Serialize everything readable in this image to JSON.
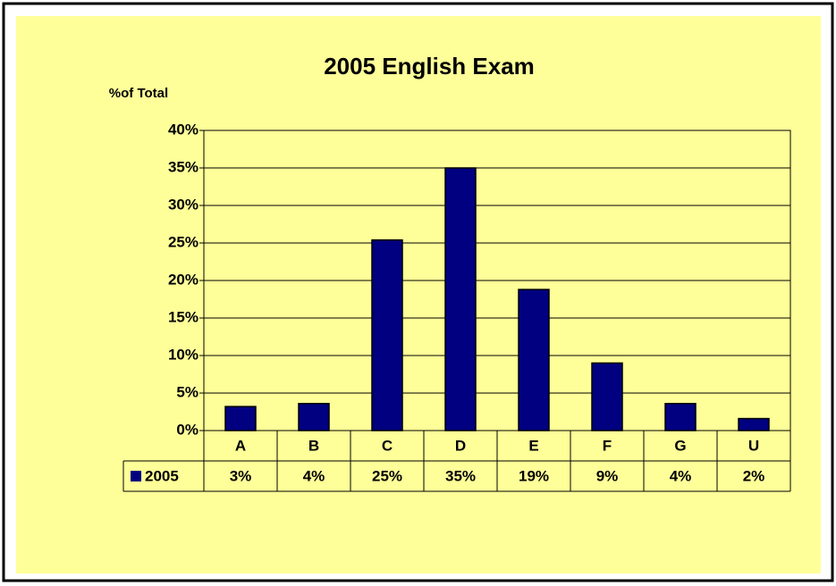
{
  "chart_data": {
    "type": "bar",
    "title": "2005 English Exam",
    "y_label": "%of Total",
    "categories": [
      "A",
      "B",
      "C",
      "D",
      "E",
      "F",
      "G",
      "U"
    ],
    "series": [
      {
        "name": "2005",
        "color": "#000080",
        "values": [
          3.2,
          3.6,
          25.4,
          35,
          18.8,
          9,
          3.6,
          1.6
        ],
        "value_labels": [
          "3%",
          "4%",
          "25%",
          "35%",
          "19%",
          "9%",
          "4%",
          "2%"
        ]
      }
    ],
    "ylim": [
      0,
      40
    ],
    "yticks": [
      {
        "value": 0,
        "label": "0%"
      },
      {
        "value": 5,
        "label": "5%"
      },
      {
        "value": 10,
        "label": "10%"
      },
      {
        "value": 15,
        "label": "15%"
      },
      {
        "value": 20,
        "label": "20%"
      },
      {
        "value": 25,
        "label": "25%"
      },
      {
        "value": 30,
        "label": "30%"
      },
      {
        "value": 35,
        "label": "35%"
      },
      {
        "value": 40,
        "label": "40%"
      }
    ],
    "grid": true
  }
}
